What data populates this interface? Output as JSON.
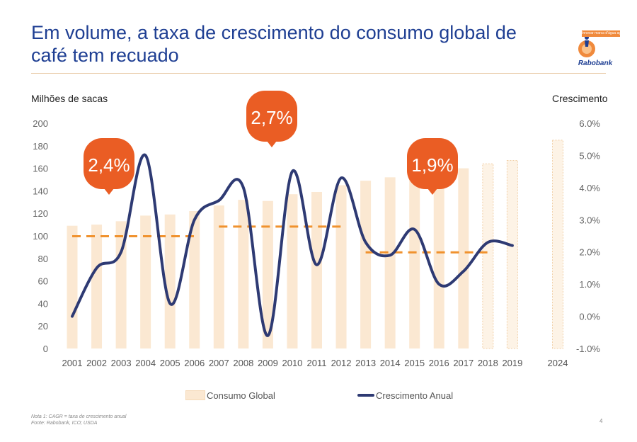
{
  "title": "Em volume, a taxa de crescimento do consumo global de café tem recuado",
  "logo": {
    "tagline": "Innovar marca d'água agora",
    "name": "Rabobank"
  },
  "footnote": {
    "line1": "Nota 1: CAGR = taxa de crescimento anual",
    "line2": "Fonte: Rabobank, ICO; USDA"
  },
  "page_number": "4",
  "colors": {
    "bar": "#fbe8d2",
    "bar_projection": "#fdf3e6",
    "line": "#2e3a73",
    "callout": "#ea5d24",
    "dash": "#f0922e",
    "title": "#1f3f93"
  },
  "chart_data": {
    "type": "bar",
    "ylabel": "Milhões de sacas",
    "y2label": "Crescimento",
    "ylim": [
      0,
      200
    ],
    "y_ticks": [
      "0",
      "20",
      "40",
      "60",
      "80",
      "100",
      "120",
      "140",
      "160",
      "180",
      "200"
    ],
    "y2lim": [
      -1.0,
      6.0
    ],
    "y2_ticks": [
      "-1.0%",
      "0.0%",
      "1.0%",
      "2.0%",
      "3.0%",
      "4.0%",
      "5.0%",
      "6.0%"
    ],
    "categories": [
      "2001",
      "2002",
      "2003",
      "2004",
      "2005",
      "2006",
      "2007",
      "2008",
      "2009",
      "2010",
      "2011",
      "2012",
      "2013",
      "2014",
      "2015",
      "2016",
      "2017",
      "2018",
      "2019",
      "2024"
    ],
    "series": [
      {
        "name": "Consumo Global",
        "type": "bar",
        "values": [
          109,
          110,
          113,
          118,
          119,
          122,
          127,
          132,
          131,
          137,
          139,
          145,
          149,
          152,
          155,
          158,
          160,
          164,
          167,
          185
        ],
        "projection_from": "2018"
      },
      {
        "name": "Crescimento Anual",
        "type": "line",
        "values": [
          0.0,
          1.5,
          2.0,
          5.0,
          0.4,
          3.0,
          3.6,
          4.0,
          -0.6,
          4.5,
          1.6,
          4.3,
          2.3,
          1.9,
          2.7,
          1.0,
          1.4,
          2.3,
          2.2,
          null
        ]
      }
    ],
    "annotations": [
      {
        "label": "2,4%",
        "from": "2001",
        "to": "2006",
        "value": 2.4
      },
      {
        "label": "2,7%",
        "from": "2007",
        "to": "2012",
        "value": 2.7
      },
      {
        "label": "1,9%",
        "from": "2013",
        "to": "2018",
        "value": 1.9
      }
    ],
    "legend": "bottom"
  }
}
